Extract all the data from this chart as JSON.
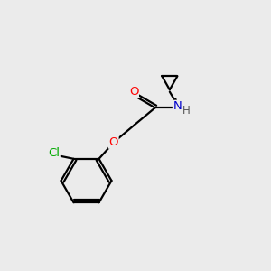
{
  "background_color": "#ebebeb",
  "bond_color": "#000000",
  "atom_colors": {
    "O": "#ff0000",
    "N": "#0000cc",
    "Cl": "#00aa00",
    "C": "#000000",
    "H": "#555555"
  },
  "figsize": [
    3.0,
    3.0
  ],
  "dpi": 100,
  "lw": 1.6,
  "fontsize": 9.5
}
